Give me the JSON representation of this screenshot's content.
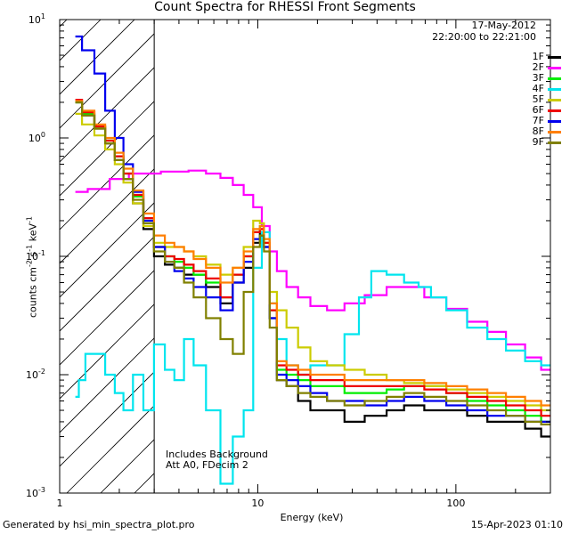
{
  "chart_data": {
    "type": "line",
    "title": "Count Spectra for RHESSI Front Segments",
    "xlabel": "Energy (keV)",
    "ylabel": "counts cm^-2 s^-1 keV^-1",
    "xscale": "log",
    "yscale": "log",
    "xlim": [
      1,
      300
    ],
    "ylim": [
      0.001,
      10
    ],
    "x_tick_labels": [
      "1",
      "10",
      "100"
    ],
    "y_tick_labels": [
      "10^-3",
      "10^-2",
      "10^-1",
      "10^0",
      "10^1"
    ],
    "date": "17-May-2012",
    "time_range": "22:20:00 to 22:21:00",
    "hatched_region_max_keV": 3,
    "notes": [
      "Includes Background",
      "Att A0, FDecim 2"
    ],
    "footer_left": "Generated by hsi_min_spectra_plot.pro",
    "footer_right": "15-Apr-2023 01:10",
    "series": [
      {
        "name": "1F",
        "color": "#000000",
        "x": [
          1.2,
          1.4,
          1.6,
          1.8,
          2,
          2.2,
          2.5,
          2.8,
          3.2,
          3.6,
          4,
          4.5,
          5,
          6,
          7,
          8,
          9,
          10,
          10.5,
          11,
          12,
          13,
          15,
          17,
          20,
          25,
          30,
          40,
          50,
          60,
          80,
          100,
          130,
          160,
          200,
          250,
          290
        ],
        "y": [
          2.0,
          1.55,
          1.2,
          0.9,
          0.65,
          0.45,
          0.28,
          0.17,
          0.1,
          0.085,
          0.08,
          0.07,
          0.07,
          0.055,
          0.04,
          0.06,
          0.08,
          0.13,
          0.16,
          0.12,
          0.03,
          0.009,
          0.008,
          0.006,
          0.005,
          0.005,
          0.004,
          0.0045,
          0.005,
          0.0055,
          0.005,
          0.005,
          0.0045,
          0.004,
          0.004,
          0.0035,
          0.003
        ]
      },
      {
        "name": "2F",
        "color": "#ff00ff",
        "x": [
          1.2,
          1.6,
          2,
          2.5,
          3,
          3.5,
          4,
          5,
          6,
          7,
          8,
          9,
          10,
          11,
          12,
          13,
          15,
          17,
          20,
          25,
          30,
          40,
          50,
          60,
          80,
          100,
          130,
          160,
          200,
          250,
          290
        ],
        "y": [
          0.35,
          0.37,
          0.45,
          0.5,
          0.5,
          0.52,
          0.52,
          0.53,
          0.5,
          0.46,
          0.4,
          0.33,
          0.26,
          0.18,
          0.11,
          0.075,
          0.055,
          0.045,
          0.038,
          0.035,
          0.04,
          0.047,
          0.055,
          0.055,
          0.045,
          0.036,
          0.028,
          0.023,
          0.018,
          0.014,
          0.011
        ]
      },
      {
        "name": "3F",
        "color": "#00ee00",
        "x": [
          1.2,
          1.4,
          1.6,
          1.8,
          2,
          2.2,
          2.5,
          2.8,
          3.2,
          3.6,
          4,
          4.5,
          5,
          6,
          7,
          8,
          9,
          10,
          10.5,
          11,
          12,
          13,
          15,
          17,
          20,
          25,
          30,
          40,
          50,
          60,
          80,
          100,
          130,
          160,
          200,
          250,
          290
        ],
        "y": [
          2.0,
          1.6,
          1.25,
          0.95,
          0.7,
          0.5,
          0.32,
          0.2,
          0.12,
          0.1,
          0.09,
          0.08,
          0.07,
          0.06,
          0.045,
          0.07,
          0.1,
          0.16,
          0.18,
          0.13,
          0.035,
          0.011,
          0.01,
          0.009,
          0.008,
          0.008,
          0.007,
          0.007,
          0.0075,
          0.008,
          0.008,
          0.007,
          0.006,
          0.0055,
          0.005,
          0.0045,
          0.004
        ]
      },
      {
        "name": "4F",
        "color": "#00e5ee",
        "x": [
          1.2,
          1.3,
          1.4,
          1.6,
          1.8,
          2,
          2.2,
          2.5,
          2.8,
          3.2,
          3.6,
          4,
          4.5,
          5,
          6,
          7,
          8,
          9,
          10,
          11,
          12,
          13,
          15,
          17,
          20,
          25,
          30,
          35,
          40,
          50,
          60,
          70,
          80,
          100,
          130,
          160,
          200,
          250,
          290
        ],
        "y": [
          0.0065,
          0.009,
          0.015,
          0.015,
          0.01,
          0.007,
          0.005,
          0.01,
          0.005,
          0.018,
          0.011,
          0.009,
          0.02,
          0.012,
          0.005,
          0.0012,
          0.003,
          0.005,
          0.08,
          0.16,
          0.04,
          0.02,
          0.012,
          0.01,
          0.012,
          0.012,
          0.022,
          0.045,
          0.075,
          0.07,
          0.06,
          0.055,
          0.045,
          0.035,
          0.025,
          0.02,
          0.016,
          0.013,
          0.012
        ]
      },
      {
        "name": "5F",
        "color": "#cccc00",
        "x": [
          1.2,
          1.4,
          1.6,
          1.8,
          2,
          2.2,
          2.5,
          2.8,
          3.2,
          3.6,
          4,
          4.5,
          5,
          6,
          7,
          8,
          9,
          10,
          10.5,
          11,
          12,
          13,
          15,
          17,
          20,
          25,
          30,
          40,
          50,
          60,
          80,
          100,
          130,
          160,
          200,
          250,
          290
        ],
        "y": [
          1.6,
          1.3,
          1.05,
          0.8,
          0.6,
          0.42,
          0.28,
          0.18,
          0.13,
          0.12,
          0.12,
          0.11,
          0.1,
          0.085,
          0.07,
          0.08,
          0.12,
          0.2,
          0.19,
          0.13,
          0.05,
          0.035,
          0.025,
          0.017,
          0.013,
          0.012,
          0.011,
          0.01,
          0.009,
          0.0085,
          0.008,
          0.0075,
          0.007,
          0.0065,
          0.006,
          0.0055,
          0.005
        ]
      },
      {
        "name": "6F",
        "color": "#ee0000",
        "x": [
          1.2,
          1.4,
          1.6,
          1.8,
          2,
          2.2,
          2.5,
          2.8,
          3.2,
          3.6,
          4,
          4.5,
          5,
          6,
          7,
          8,
          9,
          10,
          10.5,
          11,
          12,
          13,
          15,
          17,
          20,
          25,
          30,
          40,
          50,
          60,
          80,
          100,
          130,
          160,
          200,
          250,
          290
        ],
        "y": [
          2.1,
          1.65,
          1.25,
          0.95,
          0.7,
          0.5,
          0.33,
          0.21,
          0.12,
          0.1,
          0.095,
          0.085,
          0.075,
          0.065,
          0.045,
          0.07,
          0.1,
          0.16,
          0.17,
          0.13,
          0.035,
          0.012,
          0.011,
          0.01,
          0.009,
          0.009,
          0.008,
          0.008,
          0.008,
          0.008,
          0.0075,
          0.007,
          0.0065,
          0.006,
          0.0055,
          0.005,
          0.0045
        ]
      },
      {
        "name": "7F",
        "color": "#0000ee",
        "x": [
          1.2,
          1.4,
          1.6,
          1.8,
          2,
          2.2,
          2.5,
          2.8,
          3.2,
          3.6,
          4,
          4.5,
          5,
          6,
          7,
          8,
          9,
          10,
          10.5,
          11,
          12,
          13,
          15,
          17,
          20,
          25,
          30,
          40,
          50,
          60,
          80,
          100,
          130,
          160,
          200,
          250,
          290
        ],
        "y": [
          7.2,
          5.5,
          3.5,
          1.7,
          1.0,
          0.6,
          0.35,
          0.2,
          0.12,
          0.09,
          0.075,
          0.065,
          0.055,
          0.045,
          0.035,
          0.06,
          0.09,
          0.14,
          0.15,
          0.12,
          0.03,
          0.01,
          0.009,
          0.008,
          0.007,
          0.006,
          0.006,
          0.0055,
          0.006,
          0.0065,
          0.006,
          0.0055,
          0.005,
          0.0045,
          0.0045,
          0.004,
          0.004
        ]
      },
      {
        "name": "8F",
        "color": "#ff7f00",
        "x": [
          1.2,
          1.4,
          1.6,
          1.8,
          2,
          2.2,
          2.5,
          2.8,
          3.2,
          3.6,
          4,
          4.5,
          5,
          6,
          7,
          8,
          9,
          10,
          10.5,
          11,
          12,
          13,
          15,
          17,
          20,
          25,
          30,
          40,
          50,
          60,
          80,
          100,
          130,
          160,
          200,
          250,
          290
        ],
        "y": [
          2.05,
          1.7,
          1.3,
          1.0,
          0.75,
          0.55,
          0.36,
          0.23,
          0.15,
          0.13,
          0.12,
          0.11,
          0.095,
          0.08,
          0.06,
          0.08,
          0.11,
          0.17,
          0.18,
          0.14,
          0.04,
          0.013,
          0.012,
          0.011,
          0.01,
          0.01,
          0.009,
          0.009,
          0.009,
          0.009,
          0.0085,
          0.008,
          0.0075,
          0.007,
          0.0065,
          0.006,
          0.0055
        ]
      },
      {
        "name": "9F",
        "color": "#808000",
        "x": [
          1.2,
          1.4,
          1.6,
          1.8,
          2,
          2.2,
          2.5,
          2.8,
          3.2,
          3.6,
          4,
          4.5,
          5,
          6,
          7,
          8,
          9,
          10,
          10.5,
          11,
          12,
          13,
          15,
          17,
          20,
          25,
          30,
          40,
          50,
          60,
          80,
          100,
          130,
          160,
          200,
          250,
          290
        ],
        "y": [
          2.0,
          1.55,
          1.2,
          0.9,
          0.65,
          0.45,
          0.3,
          0.19,
          0.11,
          0.09,
          0.08,
          0.06,
          0.045,
          0.03,
          0.02,
          0.015,
          0.05,
          0.12,
          0.15,
          0.11,
          0.025,
          0.009,
          0.008,
          0.007,
          0.0065,
          0.006,
          0.0055,
          0.006,
          0.0065,
          0.007,
          0.0065,
          0.006,
          0.0055,
          0.005,
          0.0045,
          0.004,
          0.0038
        ]
      }
    ]
  }
}
